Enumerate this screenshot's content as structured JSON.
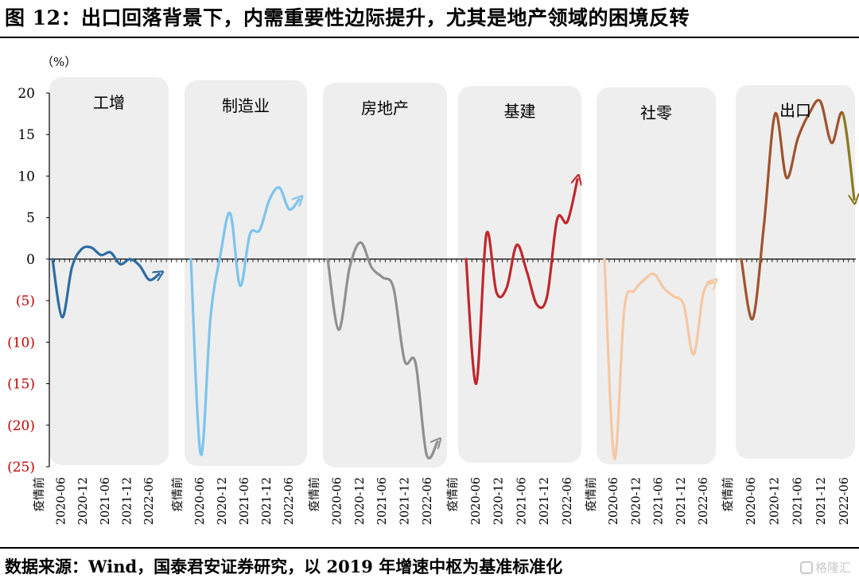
{
  "title": "图 12：出口回落背景下，内需重要性边际提升，尤其是地产领域的困境反转",
  "source": "数据来源：Wind，国泰君安证券研究，以 2019 年增速中枢为基准标准化",
  "watermark": "格隆汇",
  "chart_data": {
    "type": "line",
    "unit_label": "（%）",
    "ylim": [
      -25,
      20
    ],
    "y_ticks": [
      20,
      15,
      10,
      5,
      0,
      -5,
      -10,
      -15,
      -20,
      -25
    ],
    "y_tick_labels": [
      "20",
      "15",
      "10",
      "5",
      "0",
      "(5)",
      "(10)",
      "(15)",
      "(20)",
      "(25)"
    ],
    "negative_tick_color": "#c00000",
    "x_labels": [
      "疫情前",
      "2020-06",
      "2020-12",
      "2021-06",
      "2021-12",
      "2022-06"
    ],
    "panels": [
      {
        "name": "工增",
        "color": "#2e6ca4",
        "arrow_color": "#2e6ca4",
        "values": [
          0,
          -7,
          -1,
          1.2,
          1.4,
          0.5,
          0.8,
          -0.6,
          0,
          -0.8,
          -2.5,
          -1.8
        ]
      },
      {
        "name": "制造业",
        "color": "#7cc4ec",
        "arrow_color": "#7cc4ec",
        "values": [
          0,
          -23.5,
          -7,
          0.5,
          5.5,
          -3.2,
          3,
          3.5,
          7.2,
          8.6,
          6,
          7.2
        ]
      },
      {
        "name": "房地产",
        "color": "#8f8f8f",
        "arrow_color": "#8f8f8f",
        "values": [
          0,
          -8.5,
          -1,
          2,
          -1,
          -2.2,
          -3.5,
          -12.2,
          -12.5,
          -23.5,
          -22
        ]
      },
      {
        "name": "基建",
        "color": "#c0282d",
        "arrow_color": "#c0282d",
        "values": [
          0,
          -15,
          3,
          -4,
          -3.5,
          1.7,
          -1.5,
          -5.5,
          -4.5,
          4.8,
          4.5,
          9.6
        ]
      },
      {
        "name": "社零",
        "color": "#f5c7a3",
        "arrow_color": "#f5c7a3",
        "values": [
          0,
          -24,
          -6,
          -3.8,
          -2.5,
          -1.8,
          -3.5,
          -4.5,
          -5.5,
          -11.5,
          -4,
          -2.8
        ]
      },
      {
        "name": "出口",
        "color": "#a0522d",
        "arrow_color": "#8a7a22",
        "values": [
          0,
          -7.2,
          4,
          17.5,
          9.8,
          14.5,
          17.5,
          19,
          14,
          17.5,
          7.2
        ]
      }
    ]
  }
}
